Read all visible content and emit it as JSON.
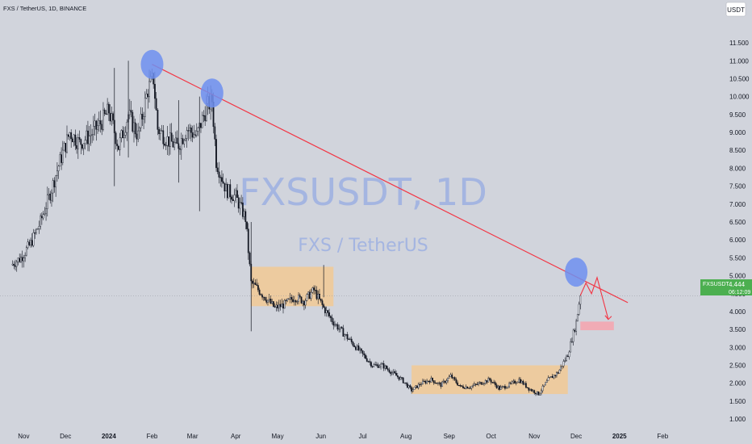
{
  "header": {
    "symbol_info": "FXS / TetherUS, 1D, BINANCE"
  },
  "currency_button": "USDT",
  "watermark": {
    "symbol": "FXSUSDT, 1D",
    "description": "FXS / TetherUS"
  },
  "price_tag": {
    "symbol": "FXSUSDT",
    "price": "4.444",
    "countdown": "06:12:09"
  },
  "colors": {
    "background": "#d1d4dc",
    "trendline": "#f23645",
    "circle": "#6f8ff0",
    "zone": "#f2c994",
    "target_zone": "#f4a6b0",
    "price_tag": "#4caf50",
    "candles": "#131722"
  },
  "chart_data": {
    "type": "line",
    "title": "",
    "series": [
      {
        "x": [
          "2023-10-23",
          "2023-10-30",
          "2023-11-06",
          "2023-11-13",
          "2023-11-20",
          "2023-11-27",
          "2023-12-04",
          "2023-12-11",
          "2023-12-18",
          "2023-12-25",
          "2024-01-01",
          "2024-01-08",
          "2024-01-15",
          "2024-01-22",
          "2024-01-29",
          "2024-02-02",
          "2024-02-05",
          "2024-02-12",
          "2024-02-19",
          "2024-02-26",
          "2024-03-04",
          "2024-03-11",
          "2024-03-15",
          "2024-03-18",
          "2024-03-25",
          "2024-04-01",
          "2024-04-08",
          "2024-04-12",
          "2024-04-15",
          "2024-04-22",
          "2024-04-29",
          "2024-05-06",
          "2024-05-13",
          "2024-05-20",
          "2024-05-27",
          "2024-06-03",
          "2024-06-10",
          "2024-06-17",
          "2024-06-24",
          "2024-07-01",
          "2024-07-08",
          "2024-07-15",
          "2024-07-22",
          "2024-07-29",
          "2024-08-05",
          "2024-08-12",
          "2024-08-19",
          "2024-08-26",
          "2024-09-02",
          "2024-09-09",
          "2024-09-16",
          "2024-09-23",
          "2024-09-30",
          "2024-10-07",
          "2024-10-14",
          "2024-10-21",
          "2024-10-28",
          "2024-11-04",
          "2024-11-11",
          "2024-11-18",
          "2024-11-25",
          "2024-12-01",
          "2024-12-04"
        ],
        "y": [
          5.3,
          5.5,
          5.9,
          6.5,
          7.3,
          8.2,
          9.0,
          8.7,
          8.9,
          9.2,
          9.6,
          8.6,
          9.5,
          8.9,
          10.2,
          10.5,
          9.1,
          8.8,
          8.6,
          9.1,
          8.9,
          9.7,
          9.9,
          8.2,
          7.4,
          7.2,
          6.6,
          4.8,
          4.7,
          4.4,
          4.1,
          4.2,
          4.4,
          4.3,
          4.6,
          4.1,
          3.7,
          3.4,
          3.1,
          2.8,
          2.5,
          2.5,
          2.3,
          2.1,
          1.8,
          2.0,
          2.1,
          1.95,
          2.2,
          1.9,
          1.9,
          2.0,
          2.1,
          1.85,
          1.95,
          2.1,
          1.85,
          1.7,
          2.1,
          2.3,
          2.8,
          3.7,
          4.5
        ]
      }
    ],
    "y_ticks": [
      "1.000",
      "1.500",
      "2.000",
      "2.500",
      "3.000",
      "3.500",
      "4.000",
      "4.500",
      "5.000",
      "5.500",
      "6.000",
      "6.500",
      "7.000",
      "7.500",
      "8.000",
      "8.500",
      "9.000",
      "9.500",
      "10.000",
      "10.500",
      "11.000",
      "11.500"
    ],
    "x_ticks": [
      "Nov",
      "Dec",
      "2024",
      "Feb",
      "Mar",
      "Apr",
      "May",
      "Jun",
      "Jul",
      "Aug",
      "Sep",
      "Oct",
      "Nov",
      "Dec",
      "2025",
      "Feb"
    ],
    "ylim": [
      0.8,
      12.2
    ],
    "xlim": [
      "2023-10-15",
      "2025-02-28"
    ],
    "grid": false,
    "legend": "none",
    "annotations": {
      "trendline": {
        "x": [
          "2024-02-01",
          "2025-01-07"
        ],
        "y": [
          10.9,
          4.25
        ]
      },
      "circles": [
        {
          "x": "2024-02-01",
          "y": 10.9
        },
        {
          "x": "2024-03-15",
          "y": 10.1
        },
        {
          "x": "2024-12-01",
          "y": 5.1
        }
      ],
      "zones": [
        {
          "x": [
            "2024-04-12",
            "2024-06-10"
          ],
          "y": [
            4.15,
            5.25
          ]
        },
        {
          "x": [
            "2024-08-05",
            "2024-11-25"
          ],
          "y": [
            1.7,
            2.5
          ]
        }
      ],
      "target_zone": {
        "x": [
          "2024-12-04",
          "2024-12-28"
        ],
        "y": [
          3.48,
          3.72
        ]
      },
      "projection": {
        "x": [
          "2024-12-04",
          "2024-12-08",
          "2024-12-12",
          "2024-12-16",
          "2024-12-24"
        ],
        "y": [
          4.45,
          4.8,
          4.5,
          4.95,
          3.78
        ]
      }
    }
  }
}
